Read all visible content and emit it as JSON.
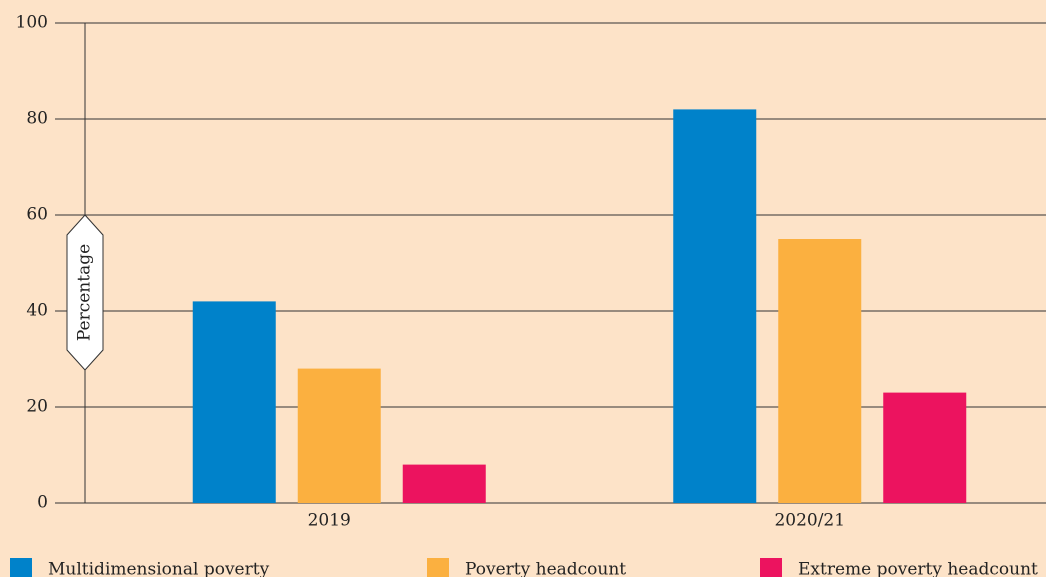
{
  "chart_data": {
    "type": "bar",
    "y_label": "Percentage",
    "categories": [
      "2019",
      "2020/21"
    ],
    "series": [
      {
        "name": "Multidimensional poverty",
        "color": "#0082ca",
        "values": [
          42,
          82
        ]
      },
      {
        "name": "Poverty headcount",
        "color": "#fbb040",
        "values": [
          28,
          55
        ]
      },
      {
        "name": "Extreme poverty headcount",
        "color": "#ec135f",
        "values": [
          8,
          23
        ]
      }
    ],
    "ylim": [
      0,
      100
    ],
    "yticks": [
      0,
      20,
      40,
      60,
      80,
      100
    ],
    "grid": true
  }
}
